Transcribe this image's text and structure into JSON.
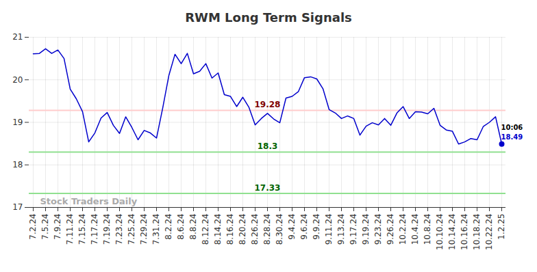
{
  "chart_data": {
    "type": "line",
    "title": "RWM Long Term Signals",
    "categories": [
      "7.2.24",
      null,
      "7.5.24",
      null,
      "7.9.24",
      null,
      "7.11.24",
      null,
      "7.15.24",
      null,
      "7.17.24",
      null,
      "7.19.24",
      null,
      "7.23.24",
      null,
      "7.25.24",
      null,
      "7.29.24",
      null,
      "7.31.24",
      null,
      "8.2.24",
      null,
      "8.6.24",
      null,
      "8.8.24",
      null,
      "8.12.24",
      null,
      "8.14.24",
      null,
      "8.16.24",
      null,
      "8.20.24",
      null,
      "8.26.24",
      null,
      "8.28.24",
      null,
      "8.30.24",
      null,
      "9.4.24",
      null,
      "9.6.24",
      null,
      "9.9.24",
      null,
      "9.11.24",
      null,
      "9.13.24",
      null,
      "9.17.24",
      null,
      "9.19.24",
      null,
      "9.23.24",
      null,
      "9.26.24",
      null,
      "10.2.24",
      null,
      "10.4.24",
      null,
      "10.8.24",
      null,
      "10.10.24",
      null,
      "10.14.24",
      null,
      "10.16.24",
      null,
      "10.18.24",
      null,
      "10.22.24",
      null,
      "1.2.25"
    ],
    "values": [
      20.61,
      20.62,
      20.73,
      20.62,
      20.7,
      20.5,
      19.78,
      19.55,
      19.25,
      18.54,
      18.75,
      19.1,
      19.23,
      18.93,
      18.74,
      19.13,
      18.88,
      18.59,
      18.81,
      18.75,
      18.63,
      19.33,
      20.1,
      20.6,
      20.38,
      20.62,
      20.14,
      20.2,
      20.38,
      20.04,
      20.16,
      19.65,
      19.61,
      19.37,
      19.59,
      19.35,
      18.94,
      19.09,
      19.21,
      19.08,
      18.99,
      19.57,
      19.61,
      19.72,
      20.05,
      20.07,
      20.02,
      19.79,
      19.3,
      19.22,
      19.09,
      19.15,
      19.09,
      18.7,
      18.91,
      18.99,
      18.94,
      19.09,
      18.93,
      19.22,
      19.37,
      19.09,
      19.25,
      19.24,
      19.2,
      19.33,
      18.93,
      18.82,
      18.79,
      18.49,
      18.54,
      18.62,
      18.59,
      18.9,
      19.0,
      19.13,
      18.49
    ],
    "color": "#0000cc",
    "ylim": [
      17,
      21
    ],
    "yticks": [
      17,
      18,
      19,
      20,
      21
    ],
    "grid": true,
    "levels": [
      {
        "value": 19.28,
        "color": "#ffcccc",
        "label_color": "#800000"
      },
      {
        "value": 18.3,
        "color": "#90e090",
        "label_color": "#006400"
      },
      {
        "value": 17.33,
        "color": "#90e090",
        "label_color": "#006400"
      }
    ],
    "annotations": {
      "watermark": "Stock Traders Daily",
      "time_label": "10:06"
    }
  }
}
